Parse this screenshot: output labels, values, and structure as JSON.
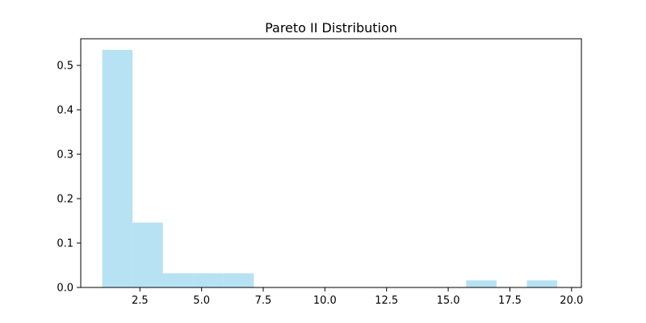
{
  "chart_data": {
    "type": "bar",
    "title": "Pareto II Distribution",
    "xlabel": "",
    "ylabel": "",
    "bar_color": "#87ceeb",
    "bar_opacity": 0.6,
    "xlim": [
      0.1,
      20.4
    ],
    "ylim": [
      0,
      0.56
    ],
    "xticks": [
      2.5,
      5.0,
      7.5,
      10.0,
      12.5,
      15.0,
      17.5,
      20.0
    ],
    "xtick_labels": [
      "2.5",
      "5.0",
      "7.5",
      "10.0",
      "12.5",
      "15.0",
      "17.5",
      "20.0"
    ],
    "yticks": [
      0.0,
      0.1,
      0.2,
      0.3,
      0.4,
      0.5
    ],
    "ytick_labels": [
      "0.0",
      "0.1",
      "0.2",
      "0.3",
      "0.4",
      "0.5"
    ],
    "bins": [
      {
        "x0": 0.97,
        "x1": 2.2,
        "value": 0.535
      },
      {
        "x0": 2.2,
        "x1": 3.43,
        "value": 0.146
      },
      {
        "x0": 3.43,
        "x1": 4.66,
        "value": 0.032
      },
      {
        "x0": 4.66,
        "x1": 5.89,
        "value": 0.032
      },
      {
        "x0": 5.89,
        "x1": 7.12,
        "value": 0.032
      },
      {
        "x0": 7.12,
        "x1": 8.35,
        "value": 0.0
      },
      {
        "x0": 8.35,
        "x1": 9.58,
        "value": 0.0
      },
      {
        "x0": 9.58,
        "x1": 10.81,
        "value": 0.0
      },
      {
        "x0": 10.81,
        "x1": 12.04,
        "value": 0.0
      },
      {
        "x0": 12.04,
        "x1": 13.27,
        "value": 0.0
      },
      {
        "x0": 13.27,
        "x1": 14.5,
        "value": 0.0
      },
      {
        "x0": 14.5,
        "x1": 15.73,
        "value": 0.0
      },
      {
        "x0": 15.73,
        "x1": 16.96,
        "value": 0.016
      },
      {
        "x0": 16.96,
        "x1": 18.19,
        "value": 0.0
      },
      {
        "x0": 18.19,
        "x1": 19.42,
        "value": 0.016
      }
    ],
    "grid": false,
    "legend": "none"
  }
}
